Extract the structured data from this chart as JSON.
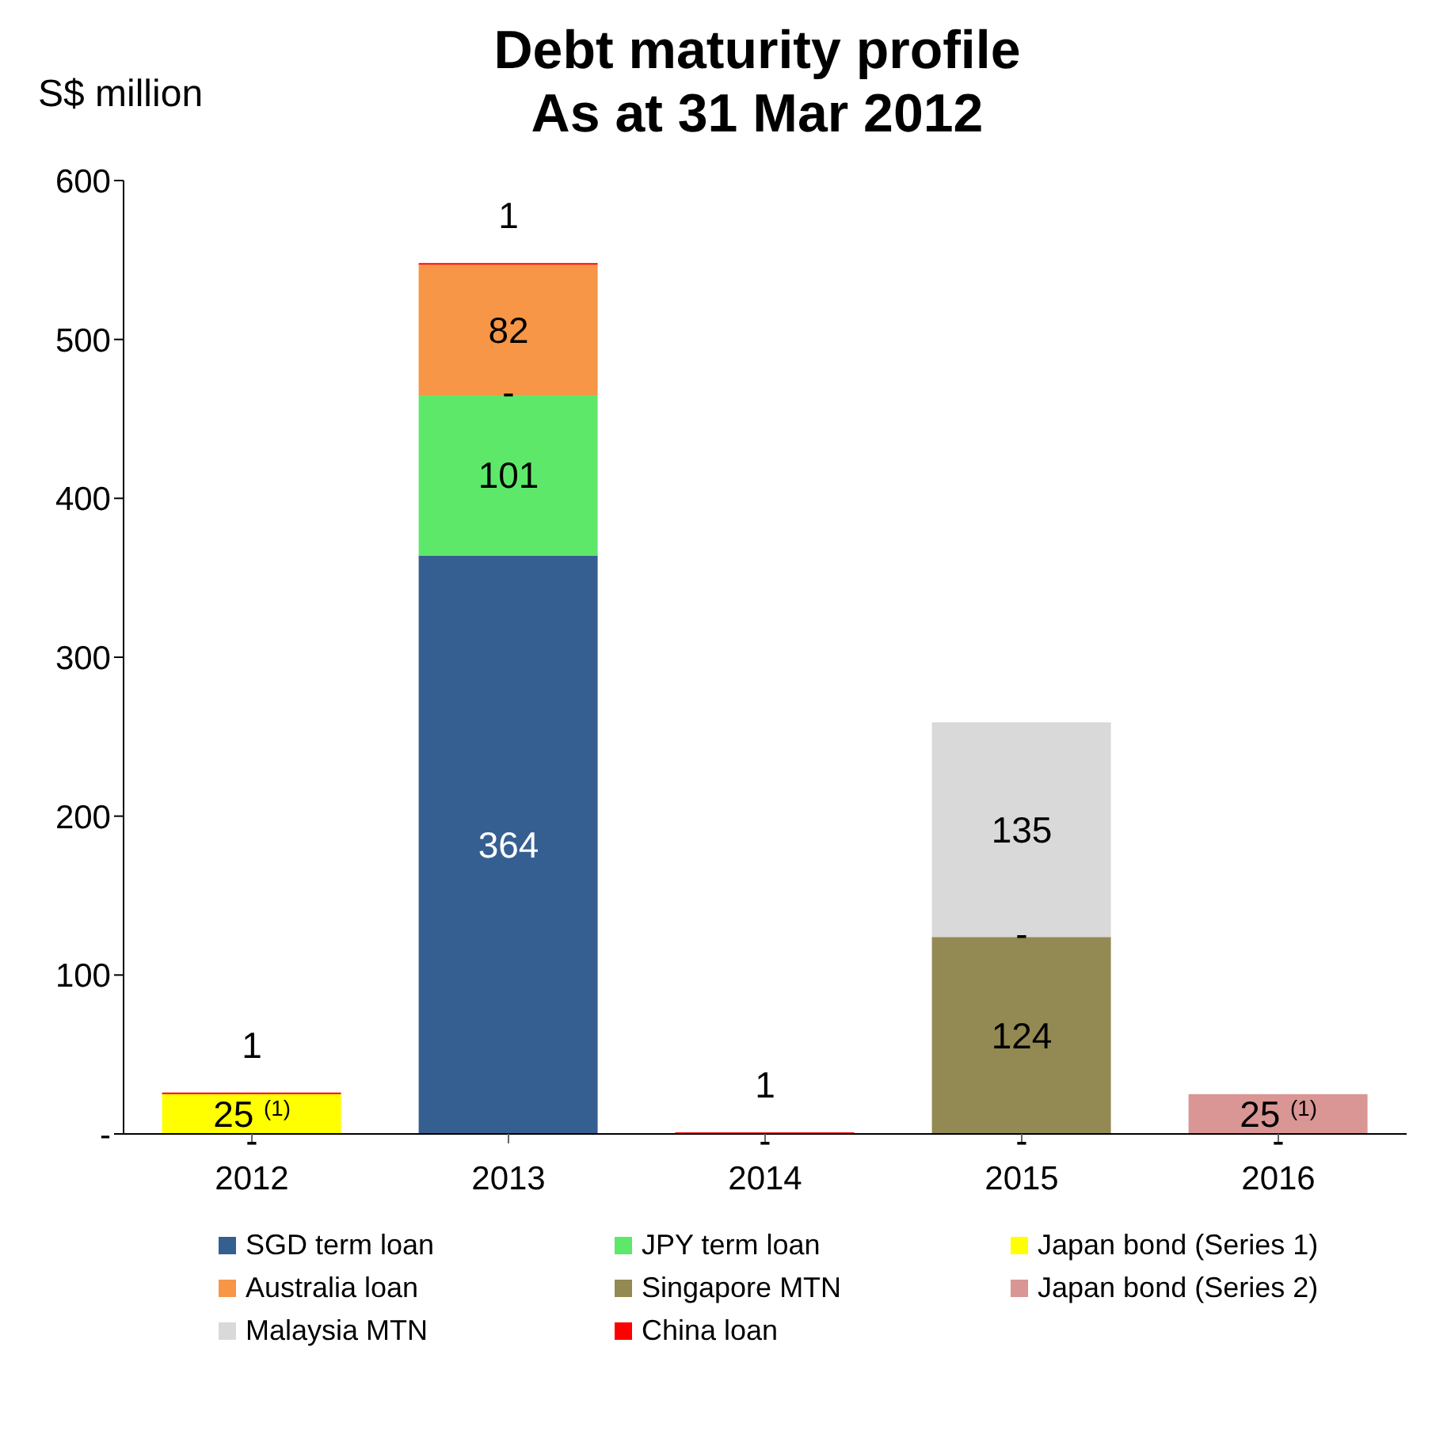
{
  "chart_data": {
    "type": "bar",
    "stacked": true,
    "title": "Debt maturity profile",
    "subtitle": "As at 31 Mar 2012",
    "ylabel": "S$ million",
    "categories": [
      "2012",
      "2013",
      "2014",
      "2015",
      "2016"
    ],
    "series": [
      {
        "name": "SGD term loan",
        "color": "#365f91",
        "values": [
          0,
          364,
          0,
          0,
          0
        ],
        "value_labels": [
          null,
          "364",
          null,
          null,
          null
        ]
      },
      {
        "name": "JPY term loan",
        "color": "#5ee86a",
        "values": [
          null,
          101,
          null,
          null,
          null
        ],
        "value_labels": [
          null,
          "101",
          null,
          null,
          null
        ]
      },
      {
        "name": "Japan bond (Series 1)",
        "color": "#ffff00",
        "values": [
          25,
          0,
          null,
          null,
          null
        ],
        "value_labels": [
          "25 $^{(1)}$",
          null,
          null,
          null,
          null
        ]
      },
      {
        "name": "Australia loan",
        "color": "#f79646",
        "values": [
          null,
          82,
          null,
          null,
          null
        ],
        "value_labels": [
          null,
          "82",
          null,
          null,
          null
        ]
      },
      {
        "name": "Singapore MTN",
        "color": "#938953",
        "values": [
          null,
          null,
          null,
          124,
          null
        ],
        "value_labels": [
          null,
          null,
          null,
          "124",
          null
        ]
      },
      {
        "name": "Japan bond (Series 2)",
        "color": "#d99694",
        "values": [
          null,
          null,
          null,
          0,
          25
        ],
        "value_labels": [
          null,
          null,
          null,
          null,
          "25 $^{(1)}$"
        ]
      },
      {
        "name": "Malaysia MTN",
        "color": "#d9d9d9",
        "values": [
          null,
          null,
          null,
          135,
          null
        ],
        "value_labels": [
          null,
          null,
          null,
          "135",
          null
        ]
      },
      {
        "name": "China loan",
        "color": "#ff0000",
        "values": [
          1,
          1,
          1,
          null,
          null
        ],
        "value_labels": [
          "1",
          "1",
          "1",
          null,
          null
        ]
      }
    ],
    "annotations": [
      {
        "text": "-",
        "x": "2012",
        "y": 0
      },
      {
        "text": "-",
        "x": "2013",
        "y": 465
      },
      {
        "text": "-",
        "x": "2014",
        "y": 0
      },
      {
        "text": "-",
        "x": "2015",
        "y": 0
      },
      {
        "text": "-",
        "x": "2015",
        "y": 124
      },
      {
        "text": "-",
        "x": "2016",
        "y": 0
      }
    ],
    "ylim": [
      0,
      600
    ],
    "yticks": [
      {
        "value": 0,
        "label": "-"
      },
      100,
      200,
      300,
      400,
      500,
      600
    ],
    "grid": false,
    "legend": "bottom"
  }
}
